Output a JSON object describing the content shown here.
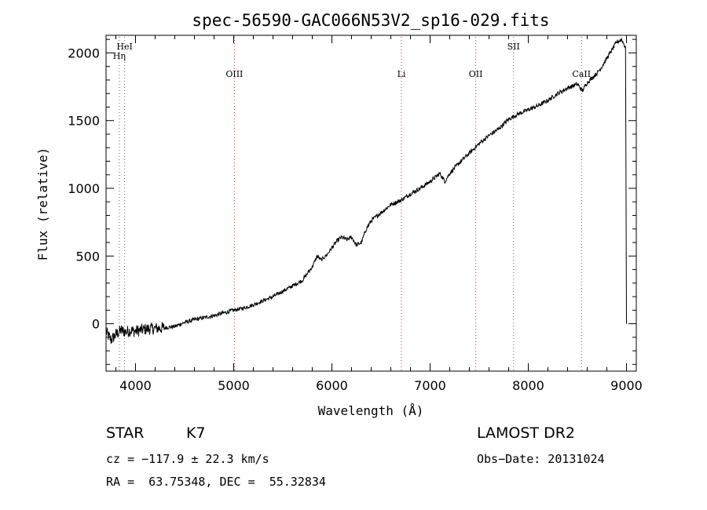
{
  "chart_data": {
    "type": "line",
    "title": "spec-56590-GAC066N53V2_sp16-029.fits",
    "xlabel": "Wavelength (Å)",
    "ylabel": "Flux (relative)",
    "xlim": [
      3700,
      9100
    ],
    "ylim": [
      -350,
      2130
    ],
    "xticks": [
      4000,
      5000,
      6000,
      7000,
      8000,
      9000
    ],
    "yticks": [
      0,
      500,
      1000,
      1500,
      2000
    ],
    "xminor_step": 200,
    "yminor_step": 100,
    "grid": false,
    "series": [
      {
        "x": [
          3700,
          3750,
          3800,
          3850,
          3900,
          3950,
          4000,
          4100,
          4200,
          4300,
          4400,
          4500,
          4600,
          4700,
          4800,
          4900,
          5000,
          5100,
          5200,
          5300,
          5400,
          5500,
          5600,
          5700,
          5800,
          5850,
          5890,
          5950,
          6000,
          6050,
          6100,
          6150,
          6200,
          6250,
          6300,
          6350,
          6400,
          6500,
          6600,
          6700,
          6800,
          6900,
          7000,
          7050,
          7100,
          7150,
          7200,
          7300,
          7400,
          7500,
          7600,
          7700,
          7800,
          7900,
          8000,
          8100,
          8200,
          8300,
          8400,
          8500,
          8550,
          8600,
          8700,
          8750,
          8800,
          8850,
          8900,
          8950,
          8990,
          9000
        ],
        "y": [
          -60,
          -120,
          -80,
          -50,
          -60,
          -50,
          -55,
          -40,
          -35,
          -30,
          -20,
          10,
          30,
          45,
          60,
          80,
          100,
          115,
          140,
          170,
          200,
          240,
          280,
          320,
          420,
          500,
          470,
          510,
          560,
          610,
          640,
          620,
          640,
          580,
          600,
          700,
          760,
          820,
          880,
          910,
          960,
          1000,
          1050,
          1080,
          1110,
          1050,
          1110,
          1190,
          1260,
          1330,
          1390,
          1440,
          1510,
          1550,
          1580,
          1610,
          1650,
          1700,
          1740,
          1770,
          1720,
          1780,
          1850,
          1900,
          1960,
          2020,
          2080,
          2100,
          2040,
          0
        ]
      }
    ],
    "line_markers": [
      {
        "x": 3889,
        "color": "#666666",
        "label": "HeI"
      },
      {
        "x": 3835,
        "color": "#666666",
        "label": "Hη"
      },
      {
        "x": 5007,
        "color": "#cc3333",
        "label": "OIII"
      },
      {
        "x": 6708,
        "color": "#cc3333",
        "label": "Li"
      },
      {
        "x": 7465,
        "color": "#cc3333",
        "label": "OII"
      },
      {
        "x": 7850,
        "color": "#666666",
        "label": "SII"
      },
      {
        "x": 8542,
        "color": "#cc3333",
        "label": "CaII"
      }
    ]
  },
  "info": {
    "object_type": "STAR",
    "subclass": "K7",
    "survey": "LAMOST DR2",
    "cz": "cz = −117.9 ± 22.3 km/s",
    "obs_date": "Obs−Date: 20131024",
    "coords": "RA =  63.75348, DEC =  55.32834"
  }
}
